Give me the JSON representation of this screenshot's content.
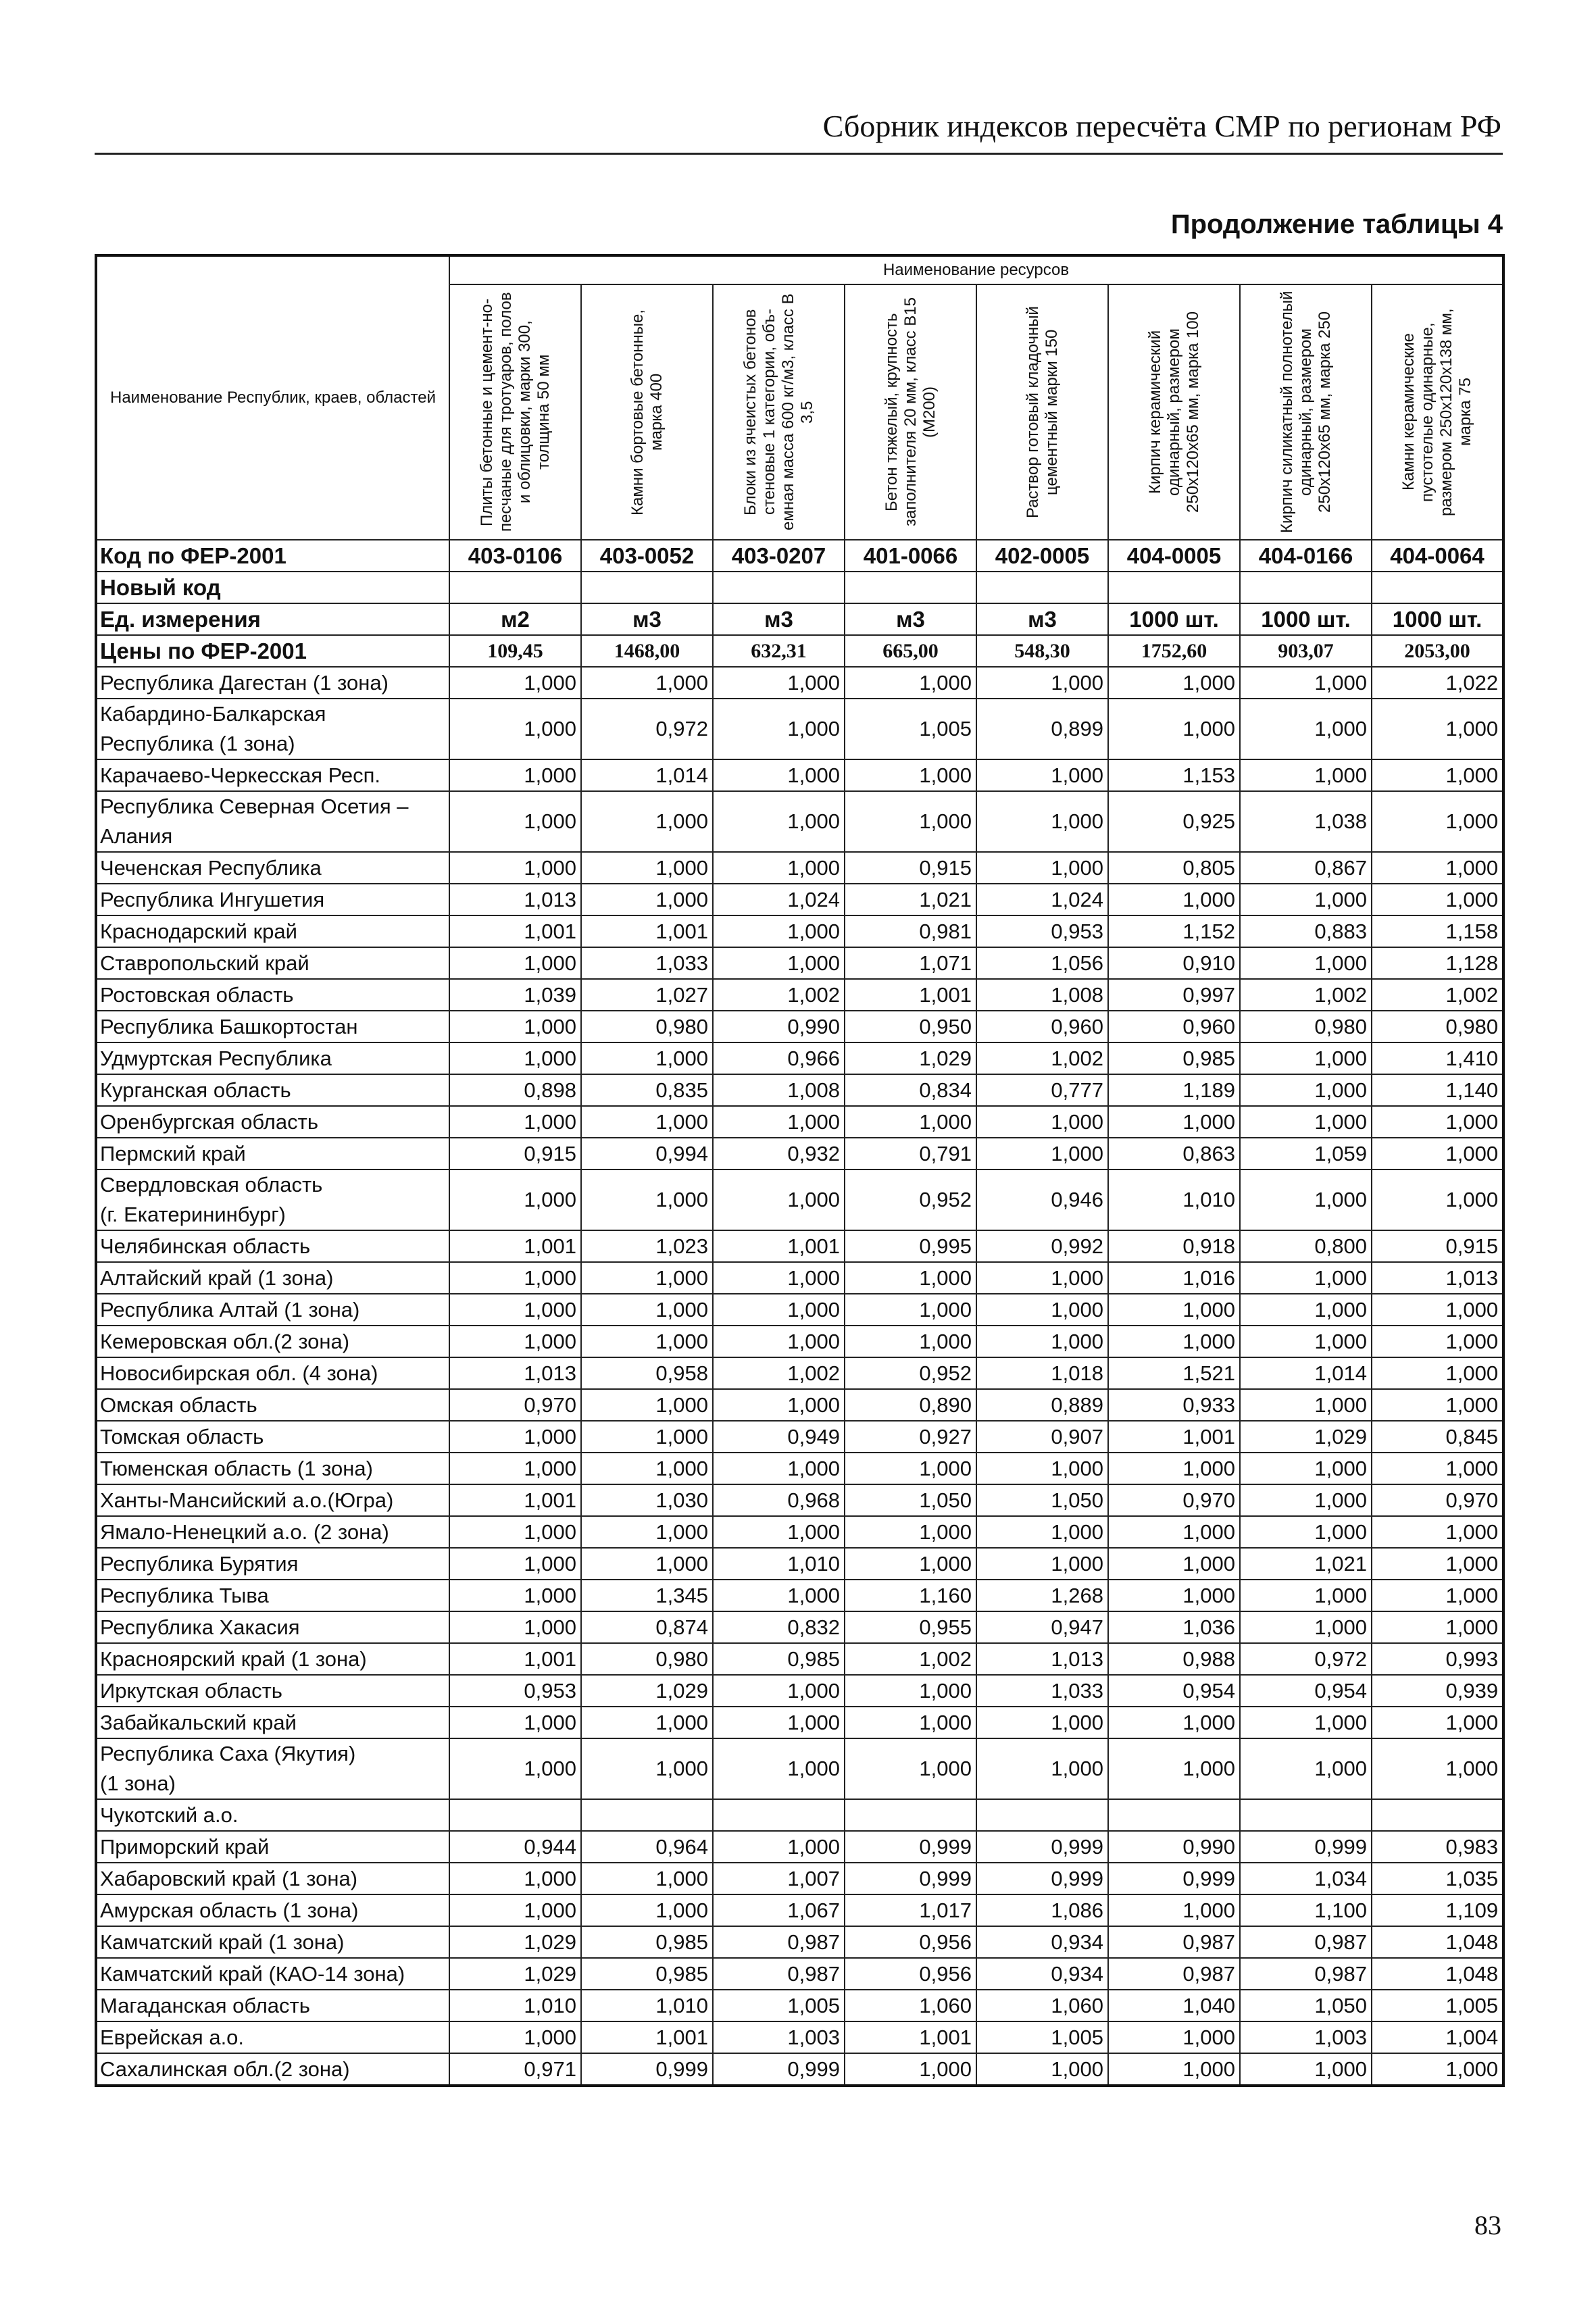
{
  "header": {
    "title": "Сборник индексов пересчёта СМР по регионам РФ"
  },
  "table_title": "Продолжение таблицы 4",
  "table": {
    "corner": "Наименование Республик, краев, областей",
    "group_header": "Наименование ресурсов",
    "columns": [
      "Плиты бетонные и цемент-но-песчаные для тротуаров, полов и облицовки, марки 300, толщина 50 мм",
      "Камни бортовые бетонные, марка 400",
      "Блоки из ячеистых бетонов стеновые 1 категории, объ-емная масса 600 кг/м3, класс В 3,5",
      "Бетон тяжелый, крупность заполнителя 20 мм, класс В15 (М200)",
      "Раствор готовый кладочный цементный марки 150",
      "Кирпич керамический одинарный, размером 250х120х65 мм, марка 100",
      "Кирпич силикатный полнотелый одинарный, размером 250х120х65 мм, марка 250",
      "Камни керамические пустотелые одинарные, размером 250х120х138 мм, марка 75"
    ],
    "rows": [
      {
        "label": "Код по ФЕР-2001",
        "cells": [
          "403-0106",
          "403-0052",
          "403-0207",
          "401-0066",
          "402-0005",
          "404-0005",
          "404-0166",
          "404-0064"
        ]
      },
      {
        "label": "Новый код",
        "cells": []
      },
      {
        "label": "Ед. измерения",
        "cells": [
          "м2",
          "м3",
          "м3",
          "м3",
          "м3",
          "1000 шт.",
          "1000 шт.",
          "1000 шт."
        ]
      },
      {
        "label": "Цены по ФЕР-2001",
        "cells": [
          "109,45",
          "1468,00",
          "632,31",
          "665,00",
          "548,30",
          "1752,60",
          "903,07",
          "2053,00"
        ]
      },
      {
        "label": "Республика Дагестан (1 зона)",
        "cells": [
          "1,000",
          "1,000",
          "1,000",
          "1,000",
          "1,000",
          "1,000",
          "1,000",
          "1,022"
        ]
      },
      {
        "label": "Кабардино-Балкарская\nРеспублика (1 зона)",
        "cells": [
          "1,000",
          "0,972",
          "1,000",
          "1,005",
          "0,899",
          "1,000",
          "1,000",
          "1,000"
        ]
      },
      {
        "label": "Карачаево-Черкесская Респ.",
        "cells": [
          "1,000",
          "1,014",
          "1,000",
          "1,000",
          "1,000",
          "1,153",
          "1,000",
          "1,000"
        ]
      },
      {
        "label": "Республика Северная Осетия –\nАлания",
        "cells": [
          "1,000",
          "1,000",
          "1,000",
          "1,000",
          "1,000",
          "0,925",
          "1,038",
          "1,000"
        ]
      },
      {
        "label": "Чеченская Республика",
        "cells": [
          "1,000",
          "1,000",
          "1,000",
          "0,915",
          "1,000",
          "0,805",
          "0,867",
          "1,000"
        ]
      },
      {
        "label": "Республика Ингушетия",
        "cells": [
          "1,013",
          "1,000",
          "1,024",
          "1,021",
          "1,024",
          "1,000",
          "1,000",
          "1,000"
        ]
      },
      {
        "label": "Краснодарский край",
        "cells": [
          "1,001",
          "1,001",
          "1,000",
          "0,981",
          "0,953",
          "1,152",
          "0,883",
          "1,158"
        ]
      },
      {
        "label": "Ставропольский край",
        "cells": [
          "1,000",
          "1,033",
          "1,000",
          "1,071",
          "1,056",
          "0,910",
          "1,000",
          "1,128"
        ]
      },
      {
        "label": "Ростовская область",
        "cells": [
          "1,039",
          "1,027",
          "1,002",
          "1,001",
          "1,008",
          "0,997",
          "1,002",
          "1,002"
        ]
      },
      {
        "label": "Республика Башкортостан",
        "cells": [
          "1,000",
          "0,980",
          "0,990",
          "0,950",
          "0,960",
          "0,960",
          "0,980",
          "0,980"
        ]
      },
      {
        "label": "Удмуртская Республика",
        "cells": [
          "1,000",
          "1,000",
          "0,966",
          "1,029",
          "1,002",
          "0,985",
          "1,000",
          "1,410"
        ]
      },
      {
        "label": "Курганская область",
        "cells": [
          "0,898",
          "0,835",
          "1,008",
          "0,834",
          "0,777",
          "1,189",
          "1,000",
          "1,140"
        ]
      },
      {
        "label": "Оренбургская область",
        "cells": [
          "1,000",
          "1,000",
          "1,000",
          "1,000",
          "1,000",
          "1,000",
          "1,000",
          "1,000"
        ]
      },
      {
        "label": "Пермский край",
        "cells": [
          "0,915",
          "0,994",
          "0,932",
          "0,791",
          "1,000",
          "0,863",
          "1,059",
          "1,000"
        ]
      },
      {
        "label": "Свердловская область\n(г. Екатерининбург)",
        "cells": [
          "1,000",
          "1,000",
          "1,000",
          "0,952",
          "0,946",
          "1,010",
          "1,000",
          "1,000"
        ]
      },
      {
        "label": "Челябинская область",
        "cells": [
          "1,001",
          "1,023",
          "1,001",
          "0,995",
          "0,992",
          "0,918",
          "0,800",
          "0,915"
        ]
      },
      {
        "label": "Алтайский край (1 зона)",
        "cells": [
          "1,000",
          "1,000",
          "1,000",
          "1,000",
          "1,000",
          "1,016",
          "1,000",
          "1,013"
        ]
      },
      {
        "label": "Республика Алтай (1 зона)",
        "cells": [
          "1,000",
          "1,000",
          "1,000",
          "1,000",
          "1,000",
          "1,000",
          "1,000",
          "1,000"
        ]
      },
      {
        "label": "Кемеровская обл.(2 зона)",
        "cells": [
          "1,000",
          "1,000",
          "1,000",
          "1,000",
          "1,000",
          "1,000",
          "1,000",
          "1,000"
        ]
      },
      {
        "label": "Новосибирская обл. (4 зона)",
        "cells": [
          "1,013",
          "0,958",
          "1,002",
          "0,952",
          "1,018",
          "1,521",
          "1,014",
          "1,000"
        ]
      },
      {
        "label": "Омская область",
        "cells": [
          "0,970",
          "1,000",
          "1,000",
          "0,890",
          "0,889",
          "0,933",
          "1,000",
          "1,000"
        ]
      },
      {
        "label": "Томская область",
        "cells": [
          "1,000",
          "1,000",
          "0,949",
          "0,927",
          "0,907",
          "1,001",
          "1,029",
          "0,845"
        ]
      },
      {
        "label": "Тюменская область (1 зона)",
        "cells": [
          "1,000",
          "1,000",
          "1,000",
          "1,000",
          "1,000",
          "1,000",
          "1,000",
          "1,000"
        ]
      },
      {
        "label": "Ханты-Мансийский а.о.(Югра)",
        "cells": [
          "1,001",
          "1,030",
          "0,968",
          "1,050",
          "1,050",
          "0,970",
          "1,000",
          "0,970"
        ]
      },
      {
        "label": "Ямало-Ненецкий а.о. (2 зона)",
        "cells": [
          "1,000",
          "1,000",
          "1,000",
          "1,000",
          "1,000",
          "1,000",
          "1,000",
          "1,000"
        ]
      },
      {
        "label": "Республика Бурятия",
        "cells": [
          "1,000",
          "1,000",
          "1,010",
          "1,000",
          "1,000",
          "1,000",
          "1,021",
          "1,000"
        ]
      },
      {
        "label": "Республика Тыва",
        "cells": [
          "1,000",
          "1,345",
          "1,000",
          "1,160",
          "1,268",
          "1,000",
          "1,000",
          "1,000"
        ]
      },
      {
        "label": "Республика Хакасия",
        "cells": [
          "1,000",
          "0,874",
          "0,832",
          "0,955",
          "0,947",
          "1,036",
          "1,000",
          "1,000"
        ]
      },
      {
        "label": "Красноярский край (1 зона)",
        "cells": [
          "1,001",
          "0,980",
          "0,985",
          "1,002",
          "1,013",
          "0,988",
          "0,972",
          "0,993"
        ]
      },
      {
        "label": "Иркутская область",
        "cells": [
          "0,953",
          "1,029",
          "1,000",
          "1,000",
          "1,033",
          "0,954",
          "0,954",
          "0,939"
        ]
      },
      {
        "label": "Забайкальский край",
        "cells": [
          "1,000",
          "1,000",
          "1,000",
          "1,000",
          "1,000",
          "1,000",
          "1,000",
          "1,000"
        ]
      },
      {
        "label": "Республика Саха (Якутия)\n(1 зона)",
        "cells": [
          "1,000",
          "1,000",
          "1,000",
          "1,000",
          "1,000",
          "1,000",
          "1,000",
          "1,000"
        ]
      },
      {
        "label": "Чукотский а.о.",
        "cells": []
      },
      {
        "label": "Приморский край",
        "cells": [
          "0,944",
          "0,964",
          "1,000",
          "0,999",
          "0,999",
          "0,990",
          "0,999",
          "0,983"
        ]
      },
      {
        "label": "Хабаровский край (1 зона)",
        "cells": [
          "1,000",
          "1,000",
          "1,007",
          "0,999",
          "0,999",
          "0,999",
          "1,034",
          "1,035"
        ]
      },
      {
        "label": "Амурская область (1 зона)",
        "cells": [
          "1,000",
          "1,000",
          "1,067",
          "1,017",
          "1,086",
          "1,000",
          "1,100",
          "1,109"
        ]
      },
      {
        "label": "Камчатский край (1 зона)",
        "cells": [
          "1,029",
          "0,985",
          "0,987",
          "0,956",
          "0,934",
          "0,987",
          "0,987",
          "1,048"
        ]
      },
      {
        "label": "Камчатский край (КАО-14 зона)",
        "cells": [
          "1,029",
          "0,985",
          "0,987",
          "0,956",
          "0,934",
          "0,987",
          "0,987",
          "1,048"
        ]
      },
      {
        "label": "Магаданская область",
        "cells": [
          "1,010",
          "1,010",
          "1,005",
          "1,060",
          "1,060",
          "1,040",
          "1,050",
          "1,005"
        ]
      },
      {
        "label": "Еврейская а.о.",
        "cells": [
          "1,000",
          "1,001",
          "1,003",
          "1,001",
          "1,005",
          "1,000",
          "1,003",
          "1,004"
        ]
      },
      {
        "label": "Сахалинская обл.(2 зона)",
        "cells": [
          "0,971",
          "0,999",
          "0,999",
          "1,000",
          "1,000",
          "1,000",
          "1,000",
          "1,000"
        ]
      }
    ]
  },
  "page_number": "83"
}
